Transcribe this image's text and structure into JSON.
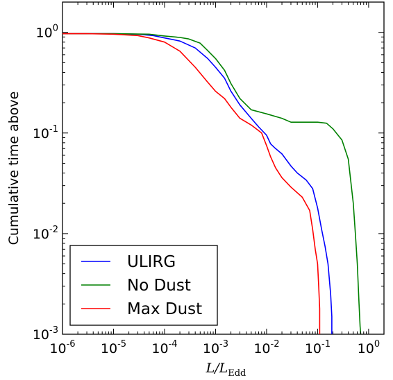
{
  "chart_data": {
    "type": "line",
    "title": "",
    "xlabel": "L/L",
    "xlabel_sub": "Edd",
    "ylabel": "Cumulative time above",
    "xscale": "log",
    "yscale": "log",
    "xlim": [
      1e-06,
      2
    ],
    "ylim": [
      0.001,
      2
    ],
    "grid": false,
    "legend_loc": "lower-left",
    "x_ticks": [
      {
        "base": "10",
        "exp": "-6"
      },
      {
        "base": "10",
        "exp": "-5"
      },
      {
        "base": "10",
        "exp": "-4"
      },
      {
        "base": "10",
        "exp": "-3"
      },
      {
        "base": "10",
        "exp": "-2"
      },
      {
        "base": "10",
        "exp": "-1"
      },
      {
        "base": "10",
        "exp": "0"
      }
    ],
    "y_ticks": [
      {
        "base": "10",
        "exp": "-3"
      },
      {
        "base": "10",
        "exp": "-2"
      },
      {
        "base": "10",
        "exp": "-1"
      },
      {
        "base": "10",
        "exp": "0"
      }
    ],
    "series": [
      {
        "name": "ULIRG",
        "color": "#0000ff",
        "x": [
          1e-06,
          3e-06,
          1e-05,
          3e-05,
          6e-05,
          0.0001,
          0.0002,
          0.0004,
          0.0007,
          0.001,
          0.0015,
          0.002,
          0.003,
          0.005,
          0.007,
          0.01,
          0.012,
          0.015,
          0.02,
          0.03,
          0.04,
          0.06,
          0.08,
          0.1,
          0.12,
          0.14,
          0.16,
          0.18,
          0.19,
          0.19
        ],
        "y": [
          0.97,
          0.97,
          0.97,
          0.96,
          0.93,
          0.88,
          0.82,
          0.7,
          0.55,
          0.45,
          0.35,
          0.26,
          0.19,
          0.14,
          0.115,
          0.095,
          0.078,
          0.07,
          0.062,
          0.047,
          0.04,
          0.034,
          0.028,
          0.018,
          0.011,
          0.0075,
          0.005,
          0.0025,
          0.0015,
          0.001
        ]
      },
      {
        "name": "No Dust",
        "color": "#008000",
        "x": [
          1e-06,
          1e-05,
          5e-05,
          0.0001,
          0.0002,
          0.0003,
          0.0005,
          0.0007,
          0.001,
          0.0015,
          0.002,
          0.003,
          0.005,
          0.01,
          0.02,
          0.03,
          0.05,
          0.08,
          0.1,
          0.15,
          0.2,
          0.3,
          0.4,
          0.5,
          0.55,
          0.6,
          0.65,
          0.68,
          0.7
        ],
        "y": [
          0.97,
          0.97,
          0.96,
          0.92,
          0.89,
          0.86,
          0.78,
          0.66,
          0.55,
          0.42,
          0.31,
          0.22,
          0.17,
          0.155,
          0.14,
          0.128,
          0.128,
          0.128,
          0.128,
          0.125,
          0.11,
          0.085,
          0.055,
          0.02,
          0.01,
          0.005,
          0.002,
          0.0012,
          0.001
        ]
      },
      {
        "name": "Max Dust",
        "color": "#ff0000",
        "x": [
          1e-06,
          3e-06,
          1e-05,
          3e-05,
          5e-05,
          0.0001,
          0.0002,
          0.0004,
          0.0007,
          0.001,
          0.0015,
          0.002,
          0.003,
          0.005,
          0.008,
          0.01,
          0.012,
          0.015,
          0.02,
          0.03,
          0.05,
          0.07,
          0.08,
          0.09,
          0.1,
          0.105,
          0.11,
          0.11
        ],
        "y": [
          0.97,
          0.97,
          0.96,
          0.93,
          0.88,
          0.8,
          0.65,
          0.45,
          0.32,
          0.26,
          0.22,
          0.18,
          0.14,
          0.12,
          0.1,
          0.075,
          0.058,
          0.045,
          0.036,
          0.029,
          0.023,
          0.017,
          0.011,
          0.007,
          0.005,
          0.003,
          0.0018,
          0.001
        ]
      }
    ]
  }
}
